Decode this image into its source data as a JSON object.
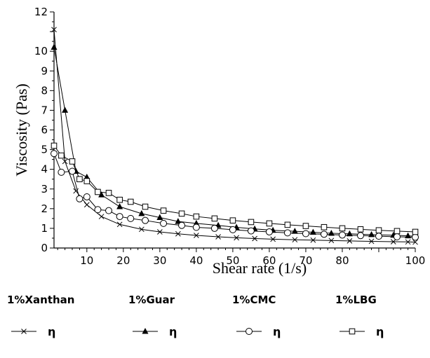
{
  "chart_data": {
    "type": "line",
    "title": "",
    "xlabel": "Shear rate (1/s)",
    "ylabel": "Viscosity (Pas)",
    "xlim": [
      1,
      100
    ],
    "ylim": [
      0,
      12
    ],
    "xticks": [
      10,
      20,
      30,
      40,
      50,
      60,
      70,
      80,
      100
    ],
    "yticks": [
      0,
      1,
      2,
      3,
      4,
      5,
      6,
      7,
      8,
      9,
      10,
      12
    ],
    "grid": false,
    "legend_position": "bottom",
    "series": [
      {
        "name": "1%Xanthan",
        "legend_label": "η",
        "marker": "x",
        "x": [
          1,
          4,
          7,
          10,
          14,
          19,
          25,
          30,
          35,
          40,
          46,
          51,
          56,
          61,
          67,
          72,
          77,
          82,
          88,
          94,
          98,
          100
        ],
        "y": [
          11.1,
          4.4,
          2.9,
          2.2,
          1.6,
          1.2,
          0.95,
          0.82,
          0.72,
          0.64,
          0.57,
          0.52,
          0.48,
          0.45,
          0.42,
          0.4,
          0.38,
          0.36,
          0.34,
          0.32,
          0.31,
          0.3
        ]
      },
      {
        "name": "1%Guar",
        "legend_label": "η",
        "marker": "triangle",
        "x": [
          1,
          4,
          7,
          10,
          14,
          19,
          25,
          30,
          35,
          40,
          46,
          51,
          56,
          61,
          67,
          72,
          77,
          82,
          88,
          94,
          98,
          100
        ],
        "y": [
          10.2,
          7.0,
          3.9,
          3.6,
          2.7,
          2.1,
          1.75,
          1.55,
          1.35,
          1.25,
          1.15,
          1.05,
          0.97,
          0.9,
          0.85,
          0.8,
          0.75,
          0.72,
          0.68,
          0.65,
          0.62,
          0.6
        ]
      },
      {
        "name": "1%CMC",
        "legend_label": "η",
        "marker": "circle",
        "x": [
          1,
          3,
          6,
          8,
          10,
          13,
          16,
          19,
          22,
          26,
          31,
          36,
          40,
          45,
          50,
          55,
          60,
          65,
          70,
          75,
          80,
          85,
          90,
          95,
          100
        ],
        "y": [
          4.8,
          3.85,
          3.9,
          2.5,
          2.6,
          1.95,
          1.9,
          1.6,
          1.5,
          1.4,
          1.25,
          1.15,
          1.05,
          1.0,
          0.93,
          0.87,
          0.82,
          0.77,
          0.73,
          0.7,
          0.66,
          0.63,
          0.6,
          0.57,
          0.55
        ]
      },
      {
        "name": "1%LBG",
        "legend_label": "η",
        "marker": "square",
        "x": [
          1,
          3,
          6,
          8,
          10,
          13,
          16,
          19,
          22,
          26,
          31,
          36,
          40,
          45,
          50,
          55,
          60,
          65,
          70,
          75,
          80,
          85,
          90,
          95,
          100
        ],
        "y": [
          5.2,
          4.7,
          4.4,
          3.5,
          3.4,
          2.85,
          2.8,
          2.45,
          2.35,
          2.1,
          1.9,
          1.75,
          1.6,
          1.5,
          1.4,
          1.32,
          1.25,
          1.18,
          1.12,
          1.06,
          1.0,
          0.95,
          0.9,
          0.86,
          0.82
        ]
      }
    ]
  }
}
